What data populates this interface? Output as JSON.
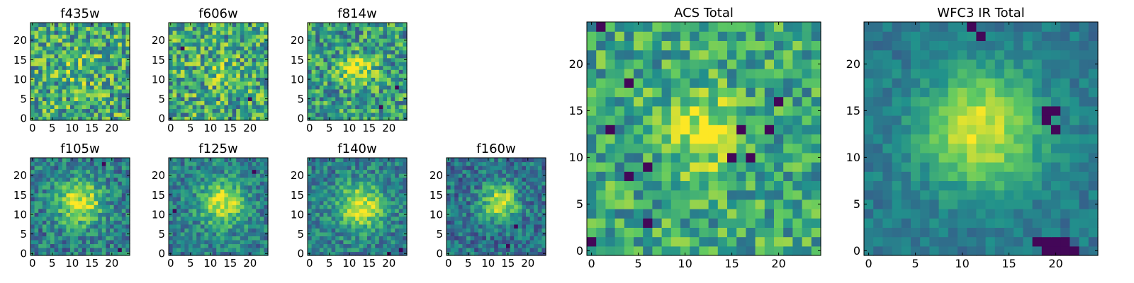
{
  "figure": {
    "background": "#ffffff",
    "colormap": "viridis",
    "colormap_stops": [
      "#440154",
      "#3b528b",
      "#21918c",
      "#5ec962",
      "#fde725"
    ]
  },
  "chart_data": [
    {
      "id": "f435w",
      "type": "heatmap",
      "title": "f435w",
      "grid_size": [
        25,
        25
      ],
      "xlim": [
        -0.5,
        24.5
      ],
      "ylim": [
        -0.5,
        24.5
      ],
      "xticks": [
        "0",
        "5",
        "10",
        "15",
        "20"
      ],
      "yticks": [
        "0",
        "5",
        "10",
        "15",
        "20"
      ],
      "signal": {
        "center": [
          12,
          12
        ],
        "sigma": 3.0,
        "peak": 0.15,
        "base": 0.6,
        "noise": 0.33
      },
      "dark_pixels": []
    },
    {
      "id": "f606w",
      "type": "heatmap",
      "title": "f606w",
      "grid_size": [
        25,
        25
      ],
      "xlim": [
        -0.5,
        24.5
      ],
      "ylim": [
        -0.5,
        24.5
      ],
      "xticks": [
        "0",
        "5",
        "10",
        "15",
        "20"
      ],
      "yticks": [
        "0",
        "5",
        "10",
        "15",
        "20"
      ],
      "signal": {
        "center": [
          12,
          12
        ],
        "sigma": 3.0,
        "peak": 0.1,
        "base": 0.6,
        "noise": 0.33
      },
      "dark_pixels": [
        [
          20,
          5
        ],
        [
          3,
          18
        ]
      ]
    },
    {
      "id": "f814w",
      "type": "heatmap",
      "title": "f814w",
      "grid_size": [
        25,
        25
      ],
      "xlim": [
        -0.5,
        24.5
      ],
      "ylim": [
        -0.5,
        24.5
      ],
      "xticks": [
        "0",
        "5",
        "10",
        "15",
        "20"
      ],
      "yticks": [
        "0",
        "5",
        "10",
        "15",
        "20"
      ],
      "signal": {
        "center": [
          12,
          12
        ],
        "sigma": 3.0,
        "peak": 0.35,
        "base": 0.55,
        "noise": 0.3
      },
      "dark_pixels": [
        [
          18,
          3
        ],
        [
          22,
          8
        ]
      ]
    },
    {
      "id": "f105w",
      "type": "heatmap",
      "title": "f105w",
      "grid_size": [
        25,
        25
      ],
      "xlim": [
        -0.5,
        24.5
      ],
      "ylim": [
        -0.5,
        24.5
      ],
      "xticks": [
        "0",
        "5",
        "10",
        "15",
        "20"
      ],
      "yticks": [
        "0",
        "5",
        "10",
        "15",
        "20"
      ],
      "signal": {
        "center": [
          12,
          13
        ],
        "sigma": 4.0,
        "peak": 0.55,
        "base": 0.42,
        "noise": 0.22
      },
      "dark_pixels": [
        [
          18,
          23
        ],
        [
          22,
          1
        ]
      ]
    },
    {
      "id": "f125w",
      "type": "heatmap",
      "title": "f125w",
      "grid_size": [
        25,
        25
      ],
      "xlim": [
        -0.5,
        24.5
      ],
      "ylim": [
        -0.5,
        24.5
      ],
      "xticks": [
        "0",
        "5",
        "10",
        "15",
        "20"
      ],
      "yticks": [
        "0",
        "5",
        "10",
        "15",
        "20"
      ],
      "signal": {
        "center": [
          13,
          13
        ],
        "sigma": 4.0,
        "peak": 0.55,
        "base": 0.42,
        "noise": 0.2
      },
      "dark_pixels": [
        [
          1,
          11
        ],
        [
          21,
          21
        ]
      ]
    },
    {
      "id": "f140w",
      "type": "heatmap",
      "title": "f140w",
      "grid_size": [
        25,
        25
      ],
      "xlim": [
        -0.5,
        24.5
      ],
      "ylim": [
        -0.5,
        24.5
      ],
      "xticks": [
        "0",
        "5",
        "10",
        "15",
        "20"
      ],
      "yticks": [
        "0",
        "5",
        "10",
        "15",
        "20"
      ],
      "signal": {
        "center": [
          13,
          12
        ],
        "sigma": 4.0,
        "peak": 0.55,
        "base": 0.42,
        "noise": 0.2
      },
      "dark_pixels": [
        [
          23,
          1
        ],
        [
          20,
          0
        ]
      ]
    },
    {
      "id": "f160w",
      "type": "heatmap",
      "title": "f160w",
      "grid_size": [
        25,
        25
      ],
      "xlim": [
        -0.5,
        24.5
      ],
      "ylim": [
        -0.5,
        24.5
      ],
      "xticks": [
        "0",
        "5",
        "10",
        "15",
        "20"
      ],
      "yticks": [
        "0",
        "5",
        "10",
        "15",
        "20"
      ],
      "signal": {
        "center": [
          13,
          13
        ],
        "sigma": 3.2,
        "peak": 0.55,
        "base": 0.38,
        "noise": 0.2
      },
      "dark_pixels": [
        [
          17,
          7
        ],
        [
          15,
          2
        ]
      ]
    },
    {
      "id": "acs_total",
      "type": "heatmap",
      "title": "ACS Total",
      "grid_size": [
        25,
        25
      ],
      "xlim": [
        -0.5,
        24.5
      ],
      "ylim": [
        -0.5,
        24.5
      ],
      "xticks": [
        "0",
        "5",
        "10",
        "15",
        "20"
      ],
      "yticks": [
        "0",
        "5",
        "10",
        "15",
        "20"
      ],
      "signal": {
        "center": [
          12,
          13
        ],
        "sigma": 3.0,
        "peak": 0.35,
        "base": 0.6,
        "noise": 0.25
      },
      "dark_pixels": [
        [
          1,
          24
        ],
        [
          2,
          13
        ],
        [
          4,
          18
        ],
        [
          4,
          8
        ],
        [
          6,
          9
        ],
        [
          16,
          13
        ],
        [
          19,
          13
        ],
        [
          20,
          16
        ],
        [
          15,
          10
        ],
        [
          17,
          10
        ],
        [
          6,
          3
        ],
        [
          0,
          1
        ]
      ]
    },
    {
      "id": "wfc3_ir_total",
      "type": "heatmap",
      "title": "WFC3 IR Total",
      "grid_size": [
        25,
        25
      ],
      "xlim": [
        -0.5,
        24.5
      ],
      "ylim": [
        -0.5,
        24.5
      ],
      "xticks": [
        "0",
        "5",
        "10",
        "15",
        "20"
      ],
      "yticks": [
        "0",
        "5",
        "10",
        "15",
        "20"
      ],
      "signal": {
        "center": [
          12,
          13
        ],
        "sigma": 4.5,
        "peak": 0.55,
        "base": 0.4,
        "noise": 0.1
      },
      "dark_pixels": [
        [
          19,
          15
        ],
        [
          20,
          15
        ],
        [
          19,
          14
        ],
        [
          20,
          13
        ],
        [
          18,
          1
        ],
        [
          19,
          1
        ],
        [
          19,
          0
        ],
        [
          20,
          0
        ],
        [
          21,
          0
        ],
        [
          20,
          1
        ],
        [
          22,
          0
        ],
        [
          21,
          1
        ],
        [
          11,
          24
        ],
        [
          12,
          23
        ]
      ]
    }
  ]
}
